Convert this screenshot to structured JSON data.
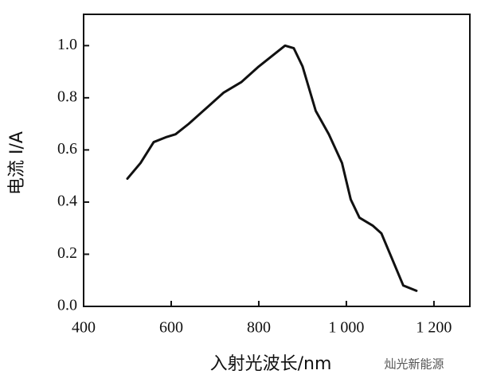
{
  "chart_data": {
    "type": "line",
    "x_label": "入射光波长/nm",
    "y_label": "电流 I/A",
    "watermark": "灿光新能源",
    "x": [
      500,
      530,
      560,
      590,
      610,
      640,
      680,
      720,
      760,
      800,
      830,
      860,
      880,
      900,
      930,
      960,
      990,
      1010,
      1030,
      1060,
      1080,
      1100,
      1130,
      1160
    ],
    "series": [
      {
        "color": "#111111",
        "values": [
          0.49,
          0.55,
          0.63,
          0.65,
          0.66,
          0.7,
          0.76,
          0.82,
          0.86,
          0.92,
          0.96,
          1.0,
          0.99,
          0.92,
          0.75,
          0.66,
          0.55,
          0.41,
          0.34,
          0.31,
          0.28,
          0.2,
          0.08,
          0.06
        ]
      }
    ],
    "xlim": [
      400,
      1282
    ],
    "ylim": [
      0,
      1.12
    ],
    "xticks": [
      400,
      600,
      800,
      {
        "value": 1000,
        "label": "1 000"
      },
      {
        "value": 1200,
        "label": "1 200"
      }
    ],
    "yticks": [
      {
        "value": 0,
        "label": "0.0"
      },
      {
        "value": 0.2,
        "label": "0.2"
      },
      {
        "value": 0.4,
        "label": "0.4"
      },
      {
        "value": 0.6,
        "label": "0.6"
      },
      {
        "value": 0.8,
        "label": "0.8"
      },
      {
        "value": 1,
        "label": "1.0"
      }
    ]
  }
}
